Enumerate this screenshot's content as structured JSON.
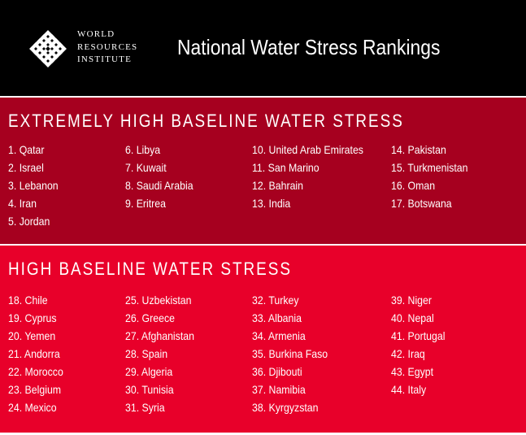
{
  "header": {
    "org_lines": [
      "WORLD",
      "RESOURCES",
      "INSTITUTE"
    ],
    "title": "National Water Stress Rankings",
    "logo_icon": "wri-knot-logo-icon"
  },
  "colors": {
    "header_bg": "#000000",
    "extreme_bg": "#a6001f",
    "high_bg": "#e8002a",
    "text": "#ffffff"
  },
  "sections": {
    "extreme": {
      "title": "EXTREMELY HIGH BASELINE WATER STRESS",
      "columns": [
        [
          "1. Qatar",
          "2. Israel",
          "3. Lebanon",
          "4. Iran",
          "5. Jordan"
        ],
        [
          "6. Libya",
          "7. Kuwait",
          "8. Saudi Arabia",
          "9. Eritrea"
        ],
        [
          "10. United Arab Emirates",
          "11. San Marino",
          "12. Bahrain",
          "13. India"
        ],
        [
          "14. Pakistan",
          "15. Turkmenistan",
          "16. Oman",
          "17. Botswana"
        ]
      ]
    },
    "high": {
      "title": "HIGH BASELINE WATER STRESS",
      "columns": [
        [
          "18. Chile",
          "19. Cyprus",
          "20. Yemen",
          "21. Andorra",
          "22. Morocco",
          "23. Belgium",
          "24. Mexico"
        ],
        [
          "25. Uzbekistan",
          "26. Greece",
          "27. Afghanistan",
          "28. Spain",
          "29. Algeria",
          "30. Tunisia",
          "31. Syria"
        ],
        [
          "32. Turkey",
          "33. Albania",
          "34. Armenia",
          "35. Burkina Faso",
          "36. Djibouti",
          "37. Namibia",
          "38. Kyrgyzstan"
        ],
        [
          "39. Niger",
          "40. Nepal",
          "41. Portugal",
          "42. Iraq",
          "43. Egypt",
          "44. Italy"
        ]
      ]
    }
  }
}
